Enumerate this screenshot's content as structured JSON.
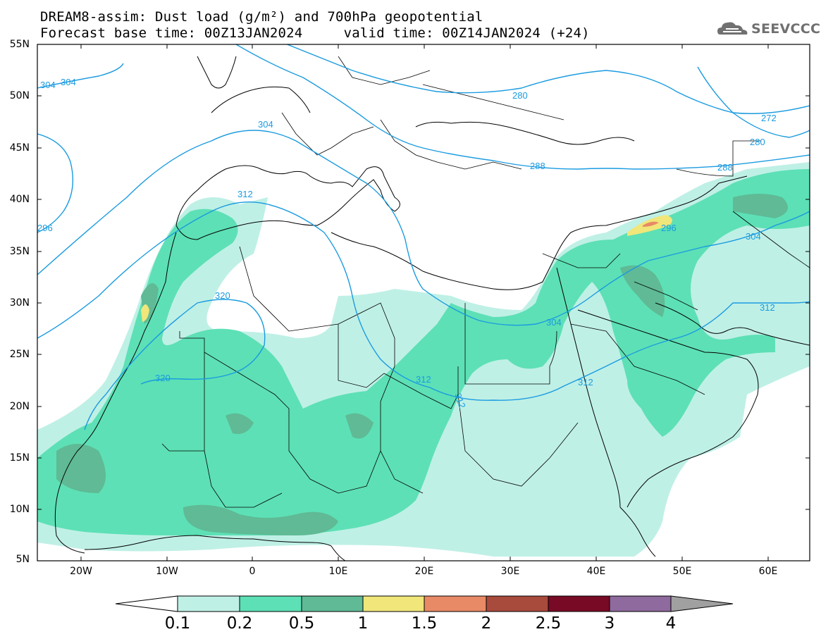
{
  "header": {
    "line1": "DREAM8-assim: Dust load (g/m²) and 700hPa geopotential",
    "line2": "Forecast base time: 00Z13JAN2024     valid time: 00Z14JAN2024 (+24)"
  },
  "logo": {
    "text": "SEEVCCC",
    "icon": "cloud-logo-icon"
  },
  "axes": {
    "lat_labels": [
      "55N",
      "50N",
      "45N",
      "40N",
      "35N",
      "30N",
      "25N",
      "20N",
      "15N",
      "10N",
      "5N"
    ],
    "lon_labels": [
      "20W",
      "10W",
      "0",
      "10E",
      "20E",
      "30E",
      "40E",
      "50E",
      "60E"
    ]
  },
  "contour_labels": [
    "304",
    "304",
    "296",
    "312",
    "304",
    "280",
    "272",
    "280",
    "288",
    "288",
    "296",
    "304",
    "312",
    "320",
    "320",
    "304",
    "312",
    "312",
    "312"
  ],
  "colorbar": {
    "labels": [
      "0.1",
      "0.2",
      "0.5",
      "1",
      "1.5",
      "2",
      "2.5",
      "3",
      "4"
    ],
    "colors": [
      "#ffffff",
      "#bff0e6",
      "#5de0b5",
      "#5fba95",
      "#f0e67a",
      "#e88a65",
      "#a84a3c",
      "#780a25",
      "#8e6a9e",
      "#a0a0a0"
    ]
  },
  "colors": {
    "contour": "#1a9be0",
    "dust_low": "#bff0e6",
    "dust_mid": "#5de0b5",
    "dust_high": "#5fba95",
    "dust_peak": "#f0e67a"
  }
}
